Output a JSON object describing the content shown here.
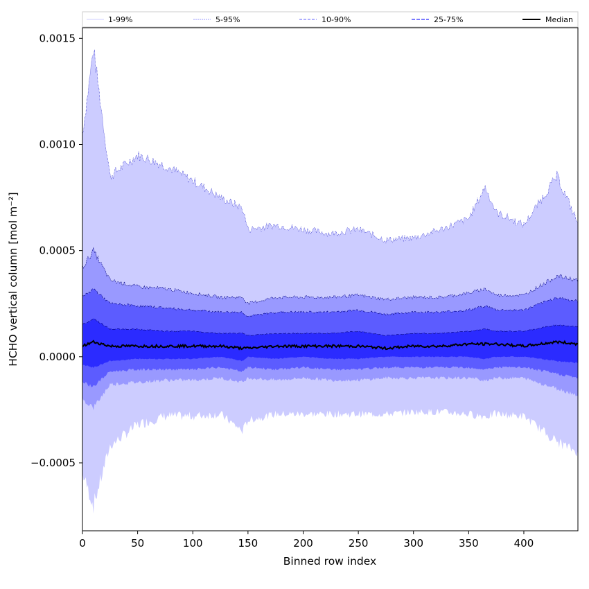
{
  "chart_data": {
    "type": "area",
    "xlabel": "Binned row index",
    "ylabel": "HCHO vertical column [mol m⁻²]",
    "xlim": [
      0,
      449
    ],
    "ylim": [
      -0.00082,
      0.00155
    ],
    "xticks": [
      0,
      50,
      100,
      150,
      200,
      250,
      300,
      350,
      400
    ],
    "xtick_labels": [
      "0",
      "50",
      "100",
      "150",
      "200",
      "250",
      "300",
      "350",
      "400"
    ],
    "yticks": [
      -0.0005,
      0.0,
      0.0005,
      0.001,
      0.0015
    ],
    "ytick_labels": [
      "−0.0005",
      "0.0000",
      "0.0005",
      "0.0010",
      "0.0015"
    ],
    "legend": {
      "placement": "top, above plot",
      "entries": [
        "1-99%",
        "5-95%",
        "10-90%",
        "25-75%",
        "Median"
      ]
    },
    "x": [
      0,
      10,
      25,
      50,
      75,
      100,
      125,
      145,
      150,
      175,
      200,
      225,
      250,
      275,
      300,
      325,
      350,
      365,
      375,
      400,
      430,
      449
    ],
    "series": [
      {
        "name": "1-99%",
        "band": "p1_p99",
        "color": "#ccccff",
        "upper": [
          0.00105,
          0.00145,
          0.00085,
          0.00095,
          0.0009,
          0.00083,
          0.00075,
          0.0007,
          0.0006,
          0.00062,
          0.0006,
          0.00058,
          0.0006,
          0.00055,
          0.00056,
          0.0006,
          0.00065,
          0.0008,
          0.00068,
          0.00062,
          0.00085,
          0.00063
        ],
        "lower": [
          -0.00055,
          -0.0007,
          -0.00042,
          -0.00032,
          -0.00028,
          -0.00028,
          -0.00027,
          -0.00035,
          -0.0003,
          -0.00027,
          -0.00027,
          -0.00027,
          -0.00027,
          -0.00027,
          -0.00026,
          -0.00026,
          -0.00027,
          -0.00028,
          -0.00027,
          -0.00028,
          -0.0004,
          -0.00045
        ]
      },
      {
        "name": "5-95%",
        "band": "p5_p95",
        "color": "#9999ff",
        "upper": [
          0.00042,
          0.0005,
          0.00036,
          0.00033,
          0.00032,
          0.0003,
          0.00028,
          0.00028,
          0.00025,
          0.00028,
          0.00028,
          0.00028,
          0.00029,
          0.00027,
          0.00028,
          0.00028,
          0.0003,
          0.00032,
          0.00029,
          0.00029,
          0.00038,
          0.00036
        ],
        "lower": [
          -0.0002,
          -0.00024,
          -0.00013,
          -0.00012,
          -0.00011,
          -0.00011,
          -0.0001,
          -0.00012,
          -0.0001,
          -0.00011,
          -0.0001,
          -0.00011,
          -0.00011,
          -0.0001,
          -0.0001,
          -0.0001,
          -0.0001,
          -0.00011,
          -0.0001,
          -0.0001,
          -0.00015,
          -0.00018
        ]
      },
      {
        "name": "10-90%",
        "band": "p10_p90",
        "color": "#5c5cff",
        "upper": [
          0.00028,
          0.00032,
          0.00025,
          0.00024,
          0.00023,
          0.00022,
          0.00021,
          0.00021,
          0.00019,
          0.00021,
          0.00021,
          0.00021,
          0.00022,
          0.0002,
          0.00021,
          0.00021,
          0.00022,
          0.00024,
          0.00022,
          0.00022,
          0.00028,
          0.00026
        ],
        "lower": [
          -0.00012,
          -0.00014,
          -7e-05,
          -6e-05,
          -6e-05,
          -6e-05,
          -5e-05,
          -7e-05,
          -5e-05,
          -6e-05,
          -5e-05,
          -6e-05,
          -6e-05,
          -5e-05,
          -5e-05,
          -5e-05,
          -5e-05,
          -6e-05,
          -5e-05,
          -5e-05,
          -8e-05,
          -0.0001
        ]
      },
      {
        "name": "25-75%",
        "band": "p25_p75",
        "color": "#2b2bff",
        "upper": [
          0.00015,
          0.00018,
          0.00013,
          0.00013,
          0.00012,
          0.00012,
          0.00011,
          0.00011,
          0.0001,
          0.00011,
          0.00011,
          0.00011,
          0.00012,
          0.0001,
          0.00011,
          0.00011,
          0.00012,
          0.00013,
          0.00012,
          0.00012,
          0.00015,
          0.00014
        ],
        "lower": [
          -4e-05,
          -5e-05,
          -2e-05,
          -1e-05,
          -1e-05,
          -1e-05,
          0.0,
          -2e-05,
          0.0,
          -1e-05,
          0.0,
          -1e-05,
          -1e-05,
          0.0,
          0.0,
          0.0,
          0.0,
          -1e-05,
          0.0,
          0.0,
          -2e-05,
          -3e-05
        ]
      },
      {
        "name": "Median",
        "band": "median",
        "color": "#000000",
        "values": [
          5e-05,
          7e-05,
          5e-05,
          5e-05,
          5e-05,
          5e-05,
          5e-05,
          4e-05,
          4e-05,
          5e-05,
          5e-05,
          5e-05,
          5e-05,
          4e-05,
          5e-05,
          5e-05,
          6e-05,
          6e-05,
          6e-05,
          5e-05,
          7e-05,
          6e-05
        ]
      }
    ]
  }
}
